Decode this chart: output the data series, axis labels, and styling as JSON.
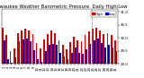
{
  "title": "Milwaukee Weather Barometric Pressure  Daily High/Low",
  "title_fontsize": 3.8,
  "bar_width": 0.85,
  "ylim": [
    29.0,
    31.1
  ],
  "yticks": [
    29.0,
    29.5,
    30.0,
    30.5,
    31.0
  ],
  "ytick_labels": [
    "29.0",
    "29.5",
    "30.0",
    "30.5",
    "31.0"
  ],
  "background_color": "#ffffff",
  "high_color": "#dd0000",
  "low_color": "#0000cc",
  "legend_high": "High",
  "legend_low": "Low",
  "days": [
    "1",
    "2",
    "3",
    "4",
    "5",
    "6",
    "7",
    "8",
    "9",
    "10",
    "11",
    "12",
    "13",
    "14",
    "15",
    "16",
    "17",
    "18",
    "19",
    "20",
    "21",
    "22",
    "23",
    "24",
    "25",
    "26",
    "27",
    "28",
    "29",
    "30",
    "31"
  ],
  "highs": [
    30.4,
    30.1,
    29.5,
    29.6,
    30.2,
    30.3,
    30.35,
    30.28,
    30.15,
    29.8,
    29.6,
    29.95,
    30.15,
    30.28,
    30.2,
    29.9,
    29.75,
    29.55,
    29.85,
    30.05,
    29.92,
    29.88,
    30.1,
    30.25,
    30.35,
    30.4,
    30.28,
    30.15,
    30.18,
    30.1,
    29.92
  ],
  "lows": [
    29.9,
    29.2,
    29.05,
    29.25,
    29.88,
    29.95,
    29.98,
    29.88,
    29.52,
    29.18,
    29.08,
    29.48,
    29.72,
    29.78,
    29.72,
    29.42,
    29.3,
    29.18,
    29.42,
    29.62,
    29.42,
    29.38,
    29.58,
    29.78,
    29.92,
    29.98,
    29.82,
    29.62,
    29.72,
    29.62,
    29.48
  ],
  "dashed_vline_x": 23.5,
  "tick_fontsize": 2.8,
  "ytick_fontsize": 2.8
}
